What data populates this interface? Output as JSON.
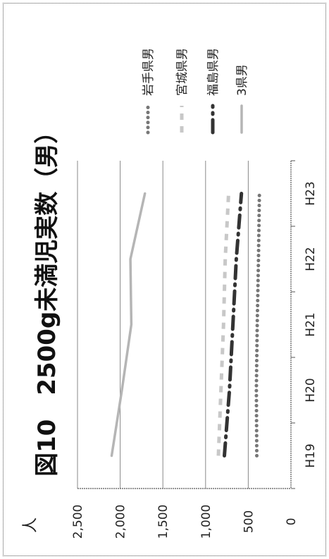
{
  "chart_data": {
    "type": "line",
    "orientation": "rotated-90-clockwise",
    "title": "図10　2500g未満児実数（男）",
    "ylabel": "人",
    "ylim": [
      0,
      2500
    ],
    "yticks": [
      "0",
      "500",
      "1,000",
      "1,500",
      "2,000",
      "2,500"
    ],
    "categories": [
      "H19",
      "H20",
      "H21",
      "H22",
      "H23"
    ],
    "grid": true,
    "legend_position": "top-right",
    "series": [
      {
        "name": "岩手県男",
        "values": [
          400,
          405,
          395,
          380,
          370
        ],
        "color": "#777777",
        "style": "round-dot"
      },
      {
        "name": "宮城県男",
        "values": [
          850,
          820,
          790,
          770,
          730
        ],
        "color": "#c8c8c8",
        "style": "dash"
      },
      {
        "name": "福島県男",
        "values": [
          780,
          720,
          680,
          640,
          580
        ],
        "color": "#333333",
        "style": "long-dash-dot"
      },
      {
        "name": "3県男",
        "values": [
          2100,
          1980,
          1870,
          1880,
          1710
        ],
        "color": "#b5b5b5",
        "style": "solid"
      }
    ]
  }
}
